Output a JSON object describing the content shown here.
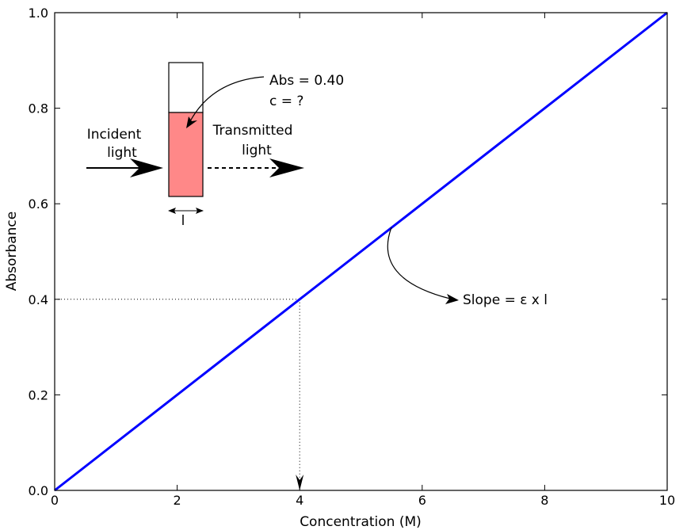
{
  "chart_data": {
    "type": "line",
    "xlabel": "Concentration (M)",
    "ylabel": "Absorbance",
    "xlim": [
      0,
      10
    ],
    "ylim": [
      0,
      1.0
    ],
    "x_ticks": [
      "0",
      "2",
      "4",
      "6",
      "8",
      "10"
    ],
    "y_ticks": [
      "0.0",
      "0.2",
      "0.4",
      "0.6",
      "0.8",
      "1.0"
    ],
    "grid": false,
    "series": [
      {
        "x": [
          0,
          10
        ],
        "y": [
          0,
          1.0
        ],
        "color": "#0000ff"
      }
    ],
    "reference_point": {
      "x": 4,
      "y": 0.4
    },
    "annotations": {
      "abs_line1": "Abs = 0.40",
      "abs_line2": "c = ?",
      "incident_line1": "Incident",
      "incident_line2": "light",
      "transmitted_line1": "Transmitted",
      "transmitted_line2": "light",
      "path_length": "l",
      "slope": "Slope = ε x l"
    },
    "cuvette_fill_color": "#ff8888"
  }
}
